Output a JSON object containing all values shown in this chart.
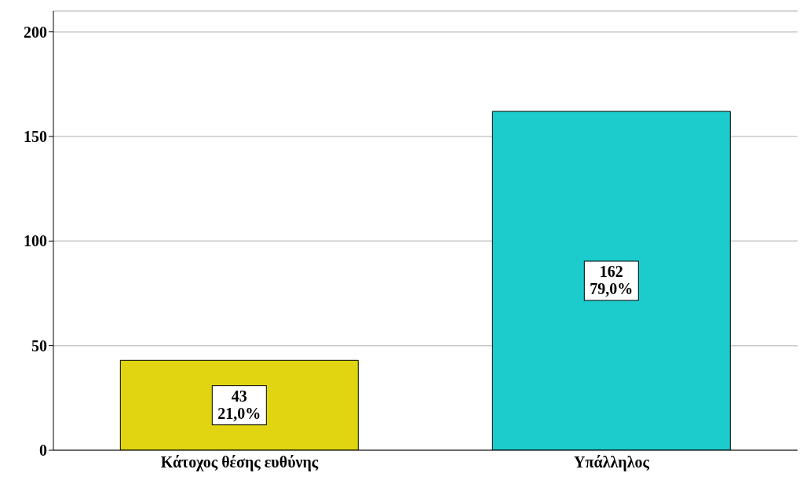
{
  "chart_data": {
    "type": "bar",
    "categories": [
      "Κάτοχος θέσης ευθύνης",
      "Υπάλληλος"
    ],
    "values": [
      43,
      162
    ],
    "colors": [
      "#e0d510",
      "#1ccccc"
    ],
    "value_labels": [
      "43\n21,0%",
      "162\n79,0%"
    ],
    "ylim": [
      0,
      210
    ],
    "yticks": [
      0,
      50,
      100,
      150,
      200
    ],
    "grid": "y"
  }
}
